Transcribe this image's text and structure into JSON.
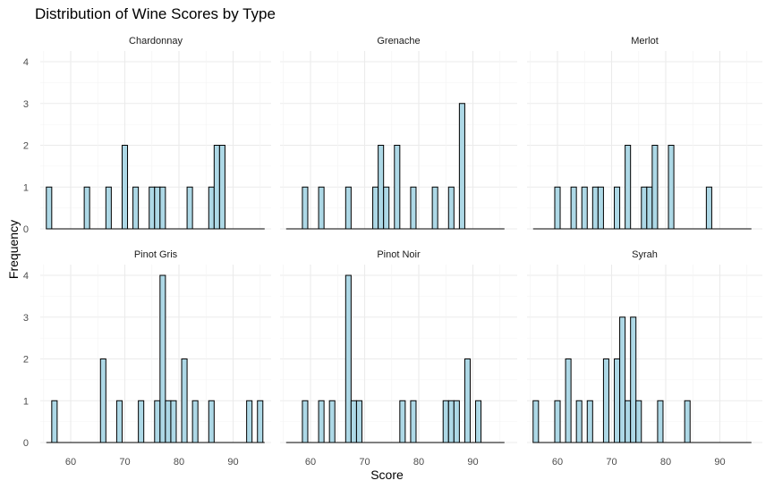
{
  "chart_data": {
    "type": "bar",
    "title": "Distribution of Wine Scores by Type",
    "xlabel": "Score",
    "ylabel": "Frequency",
    "xlim": [
      55,
      96
    ],
    "ylim": [
      0,
      4
    ],
    "x_ticks": [
      60,
      70,
      80,
      90
    ],
    "y_ticks": [
      0,
      1,
      2,
      3,
      4
    ],
    "bin_width": 1,
    "bar_fill": "#ADD8E6",
    "bar_stroke": "#000000",
    "grid": true,
    "legend": "none",
    "facets": [
      {
        "name": "Chardonnay",
        "bins": [
          [
            56,
            1
          ],
          [
            63,
            1
          ],
          [
            67,
            1
          ],
          [
            70,
            2
          ],
          [
            72,
            1
          ],
          [
            75,
            1
          ],
          [
            76,
            1
          ],
          [
            77,
            1
          ],
          [
            82,
            1
          ],
          [
            86,
            1
          ],
          [
            87,
            2
          ],
          [
            88,
            2
          ]
        ]
      },
      {
        "name": "Grenache",
        "bins": [
          [
            59,
            1
          ],
          [
            62,
            1
          ],
          [
            67,
            1
          ],
          [
            72,
            1
          ],
          [
            73,
            2
          ],
          [
            74,
            1
          ],
          [
            76,
            2
          ],
          [
            79,
            1
          ],
          [
            83,
            1
          ],
          [
            86,
            1
          ],
          [
            88,
            3
          ]
        ]
      },
      {
        "name": "Merlot",
        "bins": [
          [
            60,
            1
          ],
          [
            63,
            1
          ],
          [
            65,
            1
          ],
          [
            67,
            1
          ],
          [
            68,
            1
          ],
          [
            71,
            1
          ],
          [
            73,
            2
          ],
          [
            76,
            1
          ],
          [
            77,
            1
          ],
          [
            78,
            2
          ],
          [
            81,
            2
          ],
          [
            88,
            1
          ]
        ]
      },
      {
        "name": "Pinot Gris",
        "bins": [
          [
            57,
            1
          ],
          [
            66,
            2
          ],
          [
            69,
            1
          ],
          [
            73,
            1
          ],
          [
            76,
            1
          ],
          [
            77,
            4
          ],
          [
            78,
            1
          ],
          [
            79,
            1
          ],
          [
            81,
            2
          ],
          [
            83,
            1
          ],
          [
            86,
            1
          ],
          [
            93,
            1
          ],
          [
            95,
            1
          ]
        ]
      },
      {
        "name": "Pinot Noir",
        "bins": [
          [
            59,
            1
          ],
          [
            62,
            1
          ],
          [
            64,
            1
          ],
          [
            67,
            4
          ],
          [
            68,
            1
          ],
          [
            69,
            1
          ],
          [
            77,
            1
          ],
          [
            79,
            1
          ],
          [
            85,
            1
          ],
          [
            86,
            1
          ],
          [
            87,
            1
          ],
          [
            89,
            2
          ],
          [
            91,
            1
          ]
        ]
      },
      {
        "name": "Syrah",
        "bins": [
          [
            56,
            1
          ],
          [
            60,
            1
          ],
          [
            62,
            2
          ],
          [
            64,
            1
          ],
          [
            66,
            1
          ],
          [
            69,
            2
          ],
          [
            71,
            2
          ],
          [
            72,
            3
          ],
          [
            73,
            1
          ],
          [
            74,
            3
          ],
          [
            75,
            1
          ],
          [
            79,
            1
          ],
          [
            84,
            1
          ]
        ]
      }
    ]
  }
}
